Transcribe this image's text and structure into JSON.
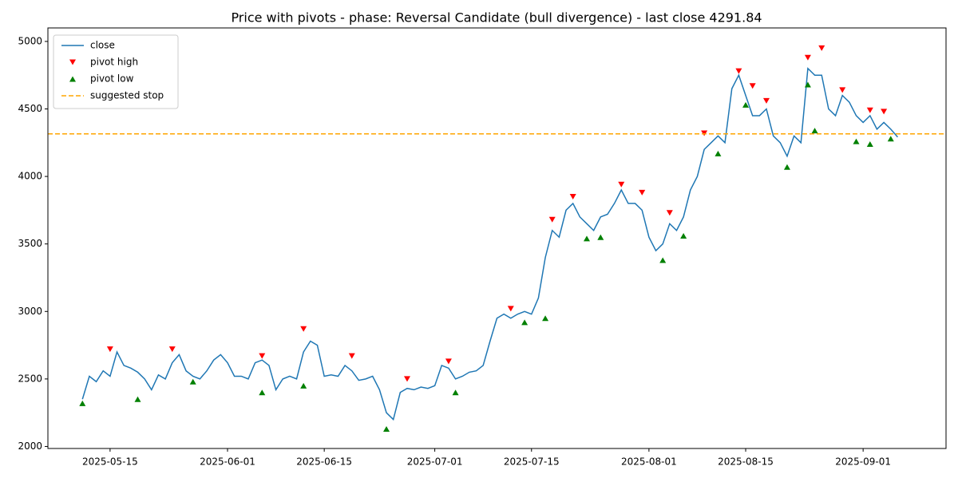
{
  "chart_data": {
    "type": "line",
    "title": "Price with pivots - phase: Reversal Candidate (bull divergence) - last close 4291.84",
    "x": [
      "2025-05-11",
      "2025-05-12",
      "2025-05-13",
      "2025-05-14",
      "2025-05-15",
      "2025-05-16",
      "2025-05-17",
      "2025-05-18",
      "2025-05-19",
      "2025-05-20",
      "2025-05-21",
      "2025-05-22",
      "2025-05-23",
      "2025-05-24",
      "2025-05-25",
      "2025-05-26",
      "2025-05-27",
      "2025-05-28",
      "2025-05-29",
      "2025-05-30",
      "2025-05-31",
      "2025-06-01",
      "2025-06-02",
      "2025-06-03",
      "2025-06-04",
      "2025-06-05",
      "2025-06-06",
      "2025-06-07",
      "2025-06-08",
      "2025-06-09",
      "2025-06-10",
      "2025-06-11",
      "2025-06-12",
      "2025-06-13",
      "2025-06-14",
      "2025-06-15",
      "2025-06-16",
      "2025-06-17",
      "2025-06-18",
      "2025-06-19",
      "2025-06-20",
      "2025-06-21",
      "2025-06-22",
      "2025-06-23",
      "2025-06-24",
      "2025-06-25",
      "2025-06-26",
      "2025-06-27",
      "2025-06-28",
      "2025-06-29",
      "2025-06-30",
      "2025-07-01",
      "2025-07-02",
      "2025-07-03",
      "2025-07-04",
      "2025-07-05",
      "2025-07-06",
      "2025-07-07",
      "2025-07-08",
      "2025-07-09",
      "2025-07-10",
      "2025-07-11",
      "2025-07-12",
      "2025-07-13",
      "2025-07-14",
      "2025-07-15",
      "2025-07-16",
      "2025-07-17",
      "2025-07-18",
      "2025-07-19",
      "2025-07-20",
      "2025-07-21",
      "2025-07-22",
      "2025-07-23",
      "2025-07-24",
      "2025-07-25",
      "2025-07-26",
      "2025-07-27",
      "2025-07-28",
      "2025-07-29",
      "2025-07-30",
      "2025-07-31",
      "2025-08-01",
      "2025-08-02",
      "2025-08-03",
      "2025-08-04",
      "2025-08-05",
      "2025-08-06",
      "2025-08-07",
      "2025-08-08",
      "2025-08-09",
      "2025-08-10",
      "2025-08-11",
      "2025-08-12",
      "2025-08-13",
      "2025-08-14",
      "2025-08-15",
      "2025-08-16",
      "2025-08-17",
      "2025-08-18",
      "2025-08-19",
      "2025-08-20",
      "2025-08-21",
      "2025-08-22",
      "2025-08-23",
      "2025-08-24",
      "2025-08-25",
      "2025-08-26",
      "2025-08-27",
      "2025-08-28",
      "2025-08-29",
      "2025-08-30",
      "2025-08-31",
      "2025-09-01",
      "2025-09-02",
      "2025-09-03",
      "2025-09-04",
      "2025-09-05",
      "2025-09-06"
    ],
    "series": [
      {
        "name": "close",
        "kind": "line",
        "color": "#1f77b4",
        "values": [
          2350,
          2520,
          2480,
          2560,
          2520,
          2700,
          2600,
          2580,
          2550,
          2500,
          2420,
          2530,
          2500,
          2620,
          2680,
          2560,
          2520,
          2500,
          2560,
          2640,
          2680,
          2620,
          2520,
          2520,
          2500,
          2620,
          2640,
          2600,
          2420,
          2500,
          2520,
          2500,
          2700,
          2780,
          2750,
          2520,
          2530,
          2520,
          2600,
          2560,
          2490,
          2500,
          2520,
          2420,
          2250,
          2200,
          2400,
          2430,
          2420,
          2440,
          2430,
          2450,
          2600,
          2580,
          2500,
          2520,
          2550,
          2560,
          2600,
          2780,
          2950,
          2980,
          2950,
          2980,
          3000,
          2980,
          3100,
          3400,
          3600,
          3550,
          3750,
          3800,
          3700,
          3650,
          3600,
          3700,
          3720,
          3800,
          3900,
          3800,
          3800,
          3750,
          3550,
          3450,
          3500,
          3650,
          3600,
          3700,
          3900,
          4000,
          4200,
          4250,
          4300,
          4250,
          4650,
          4750,
          4600,
          4450,
          4450,
          4500,
          4300,
          4250,
          4150,
          4300,
          4250,
          4800,
          4750,
          4750,
          4500,
          4450,
          4600,
          4550,
          4450,
          4400,
          4450,
          4350,
          4400,
          4350,
          4291.84
        ]
      },
      {
        "name": "pivot high",
        "kind": "scatter",
        "marker": "down",
        "color": "#ff0000",
        "x": [
          "2025-05-15",
          "2025-05-24",
          "2025-06-06",
          "2025-06-12",
          "2025-06-19",
          "2025-06-27",
          "2025-07-03",
          "2025-07-12",
          "2025-07-18",
          "2025-07-21",
          "2025-07-28",
          "2025-07-31",
          "2025-08-04",
          "2025-08-09",
          "2025-08-14",
          "2025-08-16",
          "2025-08-18",
          "2025-08-24",
          "2025-08-26",
          "2025-08-29",
          "2025-09-02",
          "2025-09-04"
        ],
        "values": [
          2720,
          2720,
          2670,
          2870,
          2670,
          2500,
          2630,
          3020,
          3680,
          3850,
          3940,
          3880,
          3730,
          4320,
          4780,
          4670,
          4560,
          4880,
          4950,
          4640,
          4490,
          4480
        ]
      },
      {
        "name": "pivot low",
        "kind": "scatter",
        "marker": "up",
        "color": "#008000",
        "x": [
          "2025-05-11",
          "2025-05-19",
          "2025-05-27",
          "2025-06-06",
          "2025-06-12",
          "2025-06-24",
          "2025-07-04",
          "2025-07-14",
          "2025-07-17",
          "2025-07-23",
          "2025-07-25",
          "2025-08-03",
          "2025-08-06",
          "2025-08-11",
          "2025-08-15",
          "2025-08-21",
          "2025-08-24",
          "2025-08-25",
          "2025-08-31",
          "2025-09-02",
          "2025-09-05"
        ],
        "values": [
          2320,
          2350,
          2480,
          2400,
          2450,
          2130,
          2400,
          2920,
          2950,
          3540,
          3550,
          3380,
          3560,
          4170,
          4530,
          4070,
          4680,
          4340,
          4260,
          4240,
          4280
        ]
      }
    ],
    "hlines": [
      {
        "name": "suggested stop",
        "value": 4315,
        "color": "#ffa500",
        "style": "dashed"
      }
    ],
    "xlim": [
      "2025-05-06",
      "2025-09-13"
    ],
    "xticks": [
      "2025-05-15",
      "2025-06-01",
      "2025-06-15",
      "2025-07-01",
      "2025-07-15",
      "2025-08-01",
      "2025-08-15",
      "2025-09-01"
    ],
    "ylim": [
      1985,
      5100
    ],
    "yticks": [
      2000,
      2500,
      3000,
      3500,
      4000,
      4500,
      5000
    ],
    "legend": "upper left"
  }
}
